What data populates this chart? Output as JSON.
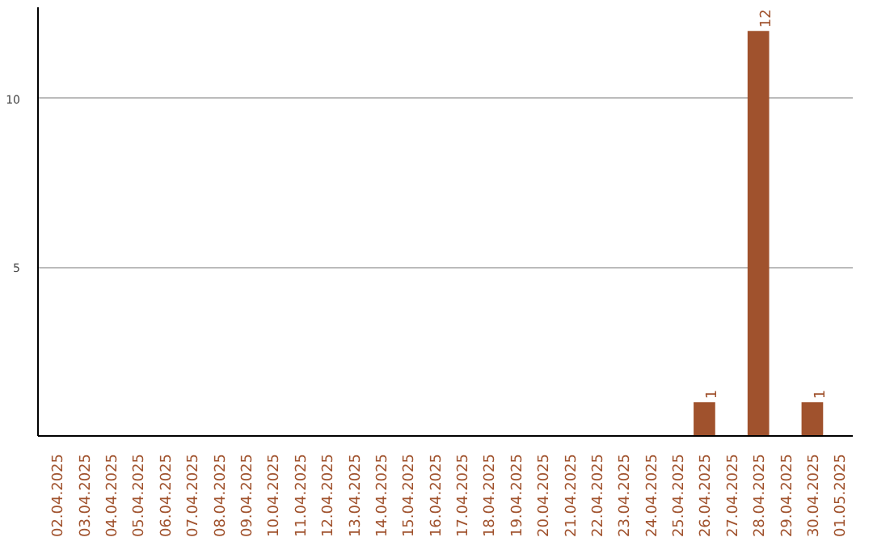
{
  "chart_data": {
    "type": "bar",
    "categories": [
      "02.04.2025",
      "03.04.2025",
      "04.04.2025",
      "05.04.2025",
      "06.04.2025",
      "07.04.2025",
      "08.04.2025",
      "09.04.2025",
      "10.04.2025",
      "11.04.2025",
      "12.04.2025",
      "13.04.2025",
      "14.04.2025",
      "15.04.2025",
      "16.04.2025",
      "17.04.2025",
      "18.04.2025",
      "19.04.2025",
      "20.04.2025",
      "21.04.2025",
      "22.04.2025",
      "23.04.2025",
      "24.04.2025",
      "25.04.2025",
      "26.04.2025",
      "27.04.2025",
      "28.04.2025",
      "29.04.2025",
      "30.04.2025",
      "01.05.2025"
    ],
    "values": [
      0,
      0,
      0,
      0,
      0,
      0,
      0,
      0,
      0,
      0,
      0,
      0,
      0,
      0,
      0,
      0,
      0,
      0,
      0,
      0,
      0,
      0,
      0,
      0,
      1,
      0,
      12,
      0,
      1,
      0
    ],
    "value_labels": [
      null,
      null,
      null,
      null,
      null,
      null,
      null,
      null,
      null,
      null,
      null,
      null,
      null,
      null,
      null,
      null,
      null,
      null,
      null,
      null,
      null,
      null,
      null,
      null,
      "1",
      null,
      "12",
      null,
      "1",
      null
    ],
    "color": "#a0522d",
    "ylim": [
      0,
      12.7
    ],
    "yticks": [
      5,
      10
    ],
    "grid": "y"
  }
}
